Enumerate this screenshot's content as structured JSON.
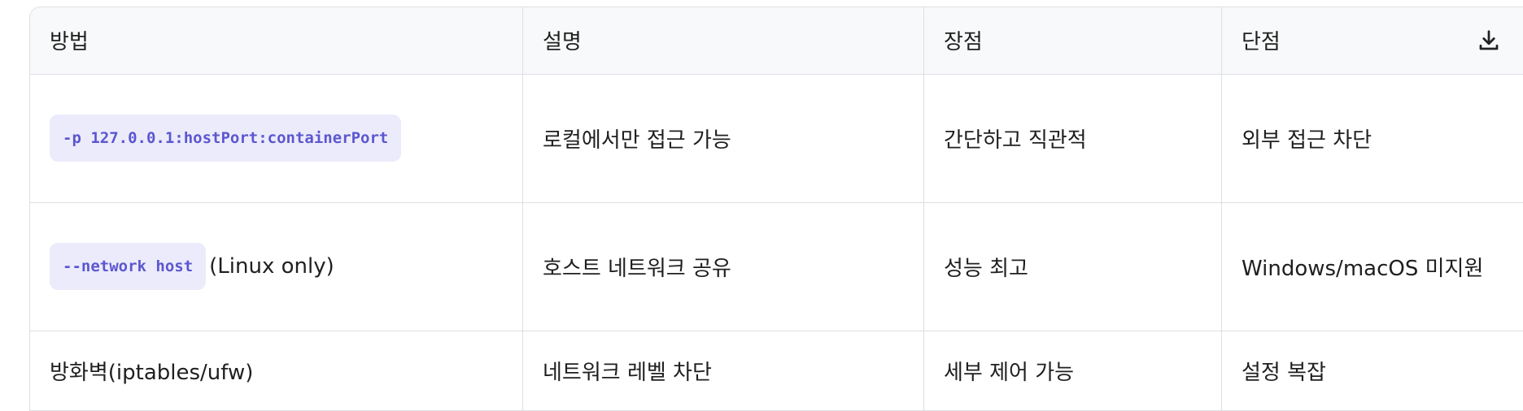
{
  "table": {
    "headers": [
      "방법",
      "설명",
      "장점",
      "단점"
    ],
    "rows": [
      {
        "method_code": "-p 127.0.0.1:hostPort:containerPort",
        "method_text": "",
        "desc": "로컬에서만 접근 가능",
        "pros": "간단하고 직관적",
        "cons": "외부 접근 차단"
      },
      {
        "method_code": "--network host",
        "method_text": "(Linux only)",
        "desc": "호스트 네트워크 공유",
        "pros": "성능 최고",
        "cons": "Windows/macOS 미지원"
      },
      {
        "method_code": "",
        "method_text": "방화벽(iptables/ufw)",
        "desc": "네트워크 레벨 차단",
        "pros": "세부 제어 가능",
        "cons": "설정 복잡"
      }
    ]
  },
  "icons": {
    "download": "download-icon"
  },
  "colors": {
    "code_text": "#5b57d0",
    "code_bg": "#ecebfb",
    "border": "#dddfe3"
  }
}
